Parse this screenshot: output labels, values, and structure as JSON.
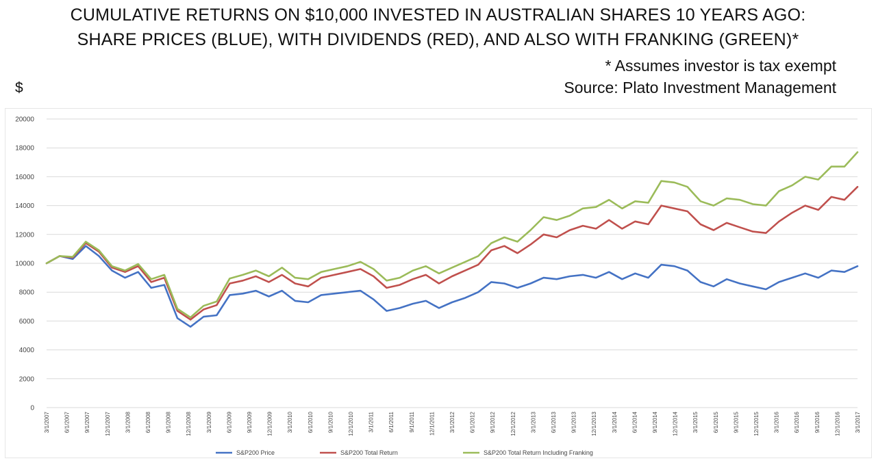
{
  "title_line1": "CUMULATIVE RETURNS ON $10,000 INVESTED IN AUSTRALIAN SHARES 10 YEARS AGO:",
  "title_line2": "SHARE PRICES (BLUE), WITH DIVIDENDS (RED), AND ALSO WITH FRANKING (GREEN)*",
  "note": "* Assumes investor is tax exempt",
  "source": "Source: Plato Investment Management",
  "unit": "$",
  "chart_data": {
    "type": "line",
    "x_start": "3/1/2007",
    "x_end": "3/1/2017",
    "x_ticks": [
      "3/1/2007",
      "6/1/2007",
      "9/1/2007",
      "12/1/2007",
      "3/1/2008",
      "6/1/2008",
      "9/1/2008",
      "12/1/2008",
      "3/1/2009",
      "6/1/2009",
      "9/1/2009",
      "12/1/2009",
      "3/1/2010",
      "6/1/2010",
      "9/1/2010",
      "12/1/2010",
      "3/1/2011",
      "6/1/2011",
      "9/1/2011",
      "12/1/2011",
      "3/1/2012",
      "6/1/2012",
      "9/1/2012",
      "12/1/2012",
      "3/1/2013",
      "6/1/2013",
      "9/1/2013",
      "12/1/2013",
      "3/1/2014",
      "6/1/2014",
      "9/1/2014",
      "12/1/2014",
      "3/1/2015",
      "6/1/2015",
      "9/1/2015",
      "12/1/2015",
      "3/1/2016",
      "6/1/2016",
      "9/1/2016",
      "12/1/2016",
      "3/1/2017"
    ],
    "y_ticks": [
      "0",
      "2000",
      "4000",
      "6000",
      "8000",
      "10000",
      "12000",
      "14000",
      "16000",
      "18000",
      "20000"
    ],
    "ylim": [
      0,
      20000
    ],
    "grid": "horizontal",
    "legend_position": "bottom",
    "series": [
      {
        "name": "S&P200 Price",
        "color": "#4472c4",
        "values": [
          10000,
          10500,
          10300,
          11200,
          10500,
          9500,
          9000,
          9400,
          8300,
          8500,
          6200,
          5600,
          6300,
          6400,
          7800,
          7900,
          8100,
          7700,
          8100,
          7400,
          7300,
          7800,
          7900,
          8000,
          8100,
          7500,
          6700,
          6900,
          7200,
          7400,
          6900,
          7300,
          7600,
          8000,
          8700,
          8600,
          8300,
          8600,
          9000,
          8900,
          9100,
          9200,
          9000,
          9400,
          8900,
          9300,
          9000,
          9900,
          9800,
          9500,
          8700,
          8400,
          8900,
          8600,
          8400,
          8200,
          8700,
          9000,
          9300,
          9000,
          9500,
          9400,
          9800
        ]
      },
      {
        "name": "S&P200 Total Return",
        "color": "#c0504d",
        "values": [
          10000,
          10500,
          10400,
          11400,
          10800,
          9700,
          9400,
          9800,
          8700,
          9000,
          6700,
          6100,
          6800,
          7100,
          8600,
          8800,
          9100,
          8700,
          9200,
          8600,
          8400,
          9000,
          9200,
          9400,
          9600,
          9100,
          8300,
          8500,
          8900,
          9200,
          8600,
          9100,
          9500,
          9900,
          10900,
          11200,
          10700,
          11300,
          12000,
          11800,
          12300,
          12600,
          12400,
          13000,
          12400,
          12900,
          12700,
          14000,
          13800,
          13600,
          12700,
          12300,
          12800,
          12500,
          12200,
          12100,
          12900,
          13500,
          14000,
          13700,
          14600,
          14400,
          15300
        ]
      },
      {
        "name": "S&P200 Total Return Including Franking",
        "color": "#9bbb59",
        "values": [
          10000,
          10500,
          10450,
          11500,
          10900,
          9800,
          9500,
          9950,
          8900,
          9200,
          6850,
          6250,
          7050,
          7350,
          8950,
          9200,
          9500,
          9100,
          9700,
          9000,
          8900,
          9400,
          9600,
          9800,
          10100,
          9600,
          8800,
          9000,
          9500,
          9800,
          9300,
          9700,
          10100,
          10500,
          11400,
          11800,
          11500,
          12300,
          13200,
          13000,
          13300,
          13800,
          13900,
          14400,
          13800,
          14300,
          14200,
          15700,
          15600,
          15300,
          14300,
          14000,
          14500,
          14400,
          14100,
          14000,
          15000,
          15400,
          16000,
          15800,
          16700,
          16700,
          17700
        ]
      }
    ]
  }
}
